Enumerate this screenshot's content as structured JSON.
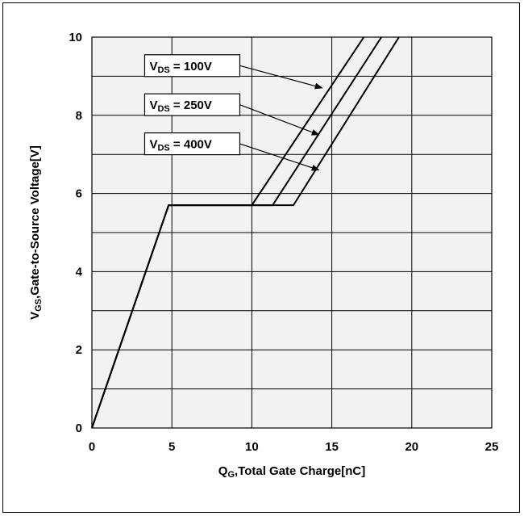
{
  "chart_data": {
    "type": "line",
    "title": "",
    "xlabel": {
      "main": "Q",
      "sub": "G",
      "rest": ",Total Gate Charge[nC]"
    },
    "ylabel": {
      "main": "V",
      "sub": "GS",
      "rest": ",Gate-to-Source Voltage[V]"
    },
    "xlim": [
      0,
      25
    ],
    "ylim": [
      0,
      10
    ],
    "xticks": [
      0,
      5,
      10,
      15,
      20,
      25
    ],
    "yticks": [
      0,
      2,
      4,
      6,
      8,
      10
    ],
    "x_minor_step": 5,
    "y_minor_step": 1,
    "grid": true,
    "plot_background": "#f2f2f2",
    "line_color": "#000000",
    "series": [
      {
        "name": "V_DS = 100V",
        "x": [
          0,
          4.8,
          10.0,
          17.0
        ],
        "y": [
          0,
          5.7,
          5.7,
          10
        ]
      },
      {
        "name": "V_DS = 250V",
        "x": [
          0,
          4.8,
          11.3,
          18.1
        ],
        "y": [
          0,
          5.7,
          5.7,
          10
        ]
      },
      {
        "name": "V_DS = 400V",
        "x": [
          0,
          4.8,
          12.6,
          19.2
        ],
        "y": [
          0,
          5.7,
          5.7,
          10
        ]
      }
    ],
    "annotations": [
      {
        "label_main": "V",
        "label_sub": "DS",
        "label_rest": " = 100V",
        "box_x": 3.3,
        "box_y": 9.55,
        "arrow_to": [
          14.4,
          8.7
        ]
      },
      {
        "label_main": "V",
        "label_sub": "DS",
        "label_rest": " = 250V",
        "box_x": 3.3,
        "box_y": 8.55,
        "arrow_to": [
          14.2,
          7.5
        ]
      },
      {
        "label_main": "V",
        "label_sub": "DS",
        "label_rest": " = 400V",
        "box_x": 3.3,
        "box_y": 7.55,
        "arrow_to": [
          14.2,
          6.6
        ]
      }
    ]
  }
}
